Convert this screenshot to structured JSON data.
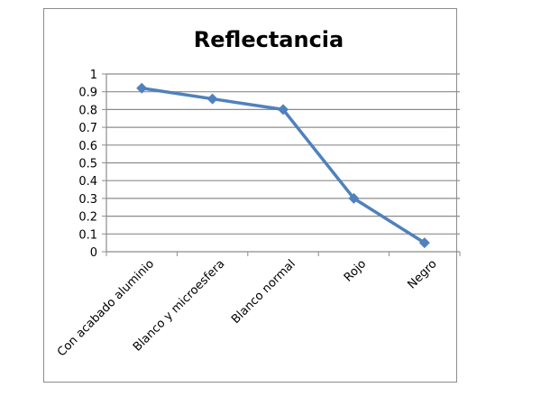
{
  "chart_data": {
    "type": "line",
    "title": "Reflectancia",
    "xlabel": "",
    "ylabel": "",
    "categories": [
      "Con acabado aluminio",
      "Blanco y microesfera",
      "Blanco normal",
      "Rojo",
      "Negro"
    ],
    "series": [
      {
        "name": "Reflectancia",
        "values": [
          0.92,
          0.86,
          0.8,
          0.3,
          0.05
        ],
        "color": "#4f81bd",
        "marker": "diamond"
      }
    ],
    "ylim": [
      0,
      1
    ],
    "yticks": [
      "0",
      "0.1",
      "0.2",
      "0.3",
      "0.4",
      "0.5",
      "0.6",
      "0.7",
      "0.8",
      "0.9",
      "1"
    ],
    "grid": true,
    "legend": "none"
  }
}
